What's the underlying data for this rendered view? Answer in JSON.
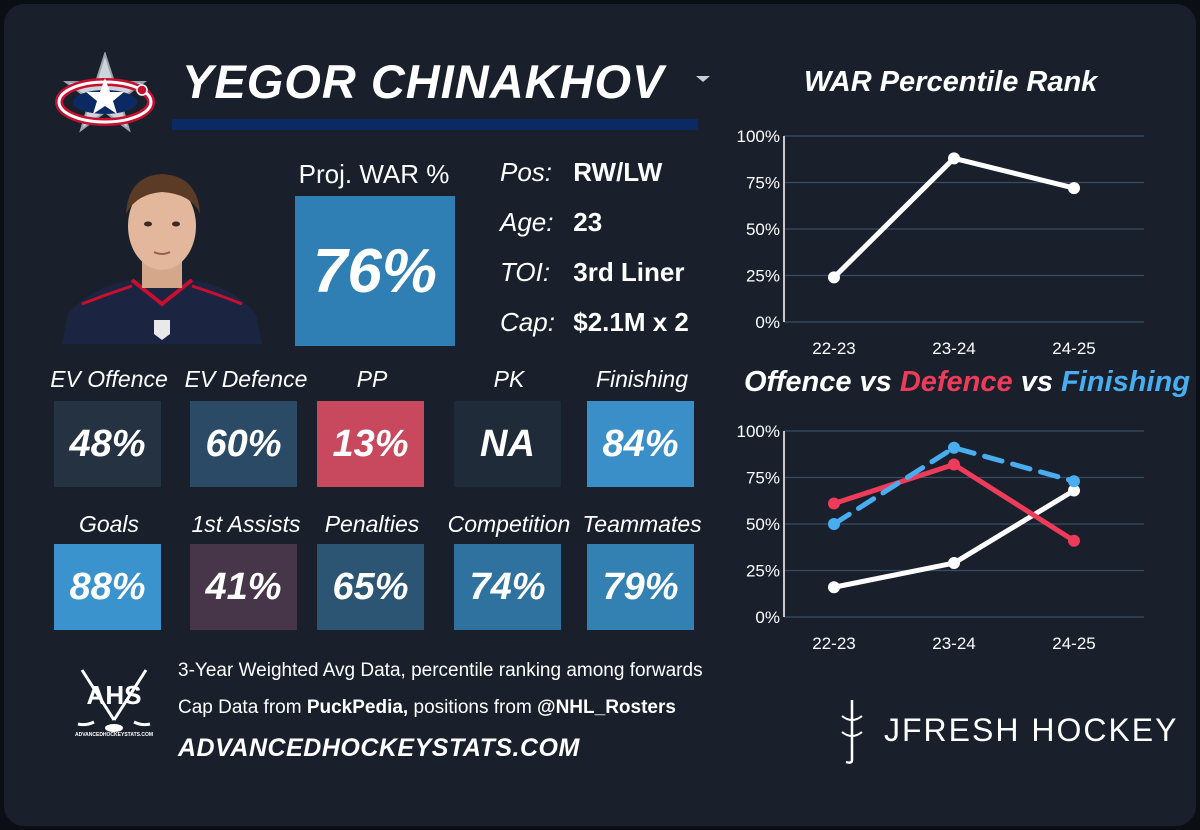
{
  "player": {
    "name": "YEGOR CHINAKHOV",
    "proj_label": "Proj. WAR %",
    "proj_value": "76%",
    "info": [
      {
        "key": "Pos:",
        "value": "RW/LW"
      },
      {
        "key": "Age:",
        "value": "23"
      },
      {
        "key": "TOI:",
        "value": "3rd Liner"
      },
      {
        "key": "Cap:",
        "value": "$2.1M x 2"
      }
    ]
  },
  "stats_row1": [
    {
      "label": "EV Offence",
      "value": "48%",
      "color": "#253242"
    },
    {
      "label": "EV Defence",
      "value": "60%",
      "color": "#2a4a66"
    },
    {
      "label": "PP",
      "value": "13%",
      "color": "#c8485e"
    },
    {
      "label": "PK",
      "value": "NA",
      "color": "#202b3a"
    },
    {
      "label": "Finishing",
      "value": "84%",
      "color": "#3a8fc8"
    }
  ],
  "stats_row2": [
    {
      "label": "Goals",
      "value": "88%",
      "color": "#3b93cd"
    },
    {
      "label": "1st Assists",
      "value": "41%",
      "color": "#47354a"
    },
    {
      "label": "Penalties",
      "value": "65%",
      "color": "#2b5572"
    },
    {
      "label": "Competition",
      "value": "74%",
      "color": "#2f729f"
    },
    {
      "label": "Teammates",
      "value": "79%",
      "color": "#3380b3"
    }
  ],
  "footer": {
    "line1": "3-Year Weighted Avg Data, percentile ranking among forwards",
    "line2_a": "Cap Data from ",
    "line2_b": "PuckPedia,",
    "line2_c": " positions from ",
    "line2_d": "@NHL_Rosters",
    "site": "ADVANCEDHOCKEYSTATS.COM",
    "ahs_logo": "AHS",
    "ahs_sub": "ADVANCEDHOCKEYSTATS.COM",
    "brand": "JFRESH HOCKEY"
  },
  "chart_data": [
    {
      "type": "line",
      "title": "WAR Percentile Rank",
      "categories": [
        "22-23",
        "23-24",
        "24-25"
      ],
      "yticks": [
        "0%",
        "25%",
        "50%",
        "75%",
        "100%"
      ],
      "ylim": [
        0,
        100
      ],
      "grid": true,
      "series": [
        {
          "values": [
            24,
            88,
            72
          ],
          "color": "#ffffff",
          "dashed": false
        }
      ]
    },
    {
      "type": "line",
      "title_parts": [
        {
          "text": "Offence vs ",
          "color": "#ffffff"
        },
        {
          "text": "Defence",
          "color": "#ef3b5a"
        },
        {
          "text": " vs ",
          "color": "#ffffff"
        },
        {
          "text": "Finishing",
          "color": "#49aef0"
        }
      ],
      "categories": [
        "22-23",
        "23-24",
        "24-25"
      ],
      "yticks": [
        "0%",
        "25%",
        "50%",
        "75%",
        "100%"
      ],
      "ylim": [
        0,
        100
      ],
      "grid": true,
      "series": [
        {
          "name": "Offence",
          "values": [
            16,
            29,
            68
          ],
          "color": "#ffffff",
          "dashed": false
        },
        {
          "name": "Defence",
          "values": [
            61,
            82,
            41
          ],
          "color": "#ef3b5a",
          "dashed": false
        },
        {
          "name": "Finishing",
          "values": [
            50,
            91,
            73
          ],
          "color": "#49aef0",
          "dashed": true
        }
      ]
    }
  ]
}
